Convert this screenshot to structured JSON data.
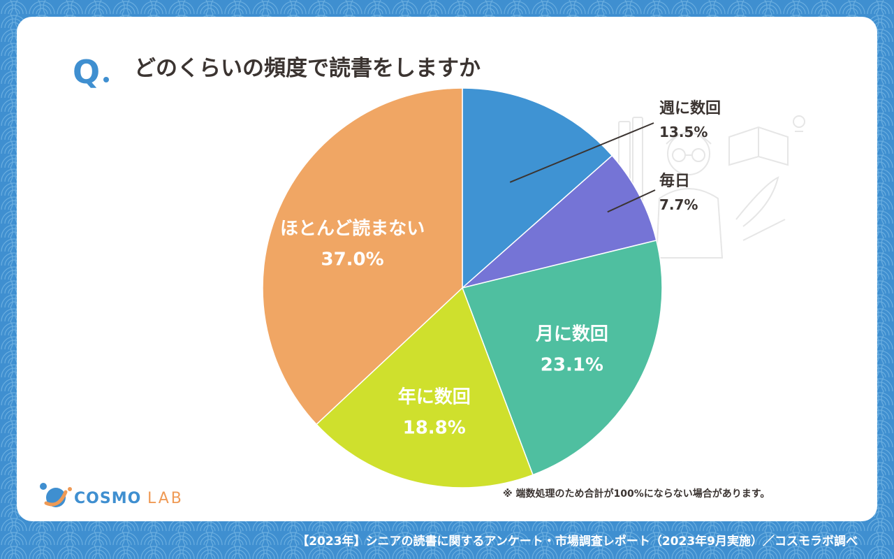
{
  "question": {
    "mark": "Q",
    "text": "どのくらいの頻度で読書をしますか"
  },
  "chart_data": {
    "type": "pie",
    "title": "どのくらいの頻度で読書をしますか",
    "unit": "%",
    "start_angle_deg": 0,
    "direction": "clockwise",
    "slices": [
      {
        "label": "週に数回",
        "value": 13.5,
        "display": "13.5%",
        "color": "#3f93d3",
        "label_color": "#3b3431",
        "label_position": "outside-leader"
      },
      {
        "label": "毎日",
        "value": 7.7,
        "display": "7.7%",
        "color": "#7574d6",
        "label_color": "#3b3431",
        "label_position": "outside-leader"
      },
      {
        "label": "月に数回",
        "value": 23.1,
        "display": "23.1%",
        "color": "#4fbfa0",
        "label_color": "#ffffff",
        "label_position": "inside"
      },
      {
        "label": "年に数回",
        "value": 18.8,
        "display": "18.8%",
        "color": "#cfe02d",
        "label_color": "#ffffff",
        "label_position": "inside"
      },
      {
        "label": "ほとんど読まない",
        "value": 37.0,
        "display": "37.0%",
        "color": "#f0a664",
        "label_color": "#ffffff",
        "label_position": "inside"
      }
    ]
  },
  "logo": {
    "brand": "COSMO",
    "brand_suffix": "LAB"
  },
  "footnote": "※ 端数処理のため合計が100%にならない場合があります。",
  "source": "【2023年】シニアの読書に関するアンケート・市場調査レポート（2023年9月実施）／コスモラボ調べ",
  "colors": {
    "background": "#3f8fd0",
    "card": "#ffffff",
    "text": "#3b3431",
    "accent": "#3f8fd0",
    "accent_secondary": "#ef9a55"
  }
}
